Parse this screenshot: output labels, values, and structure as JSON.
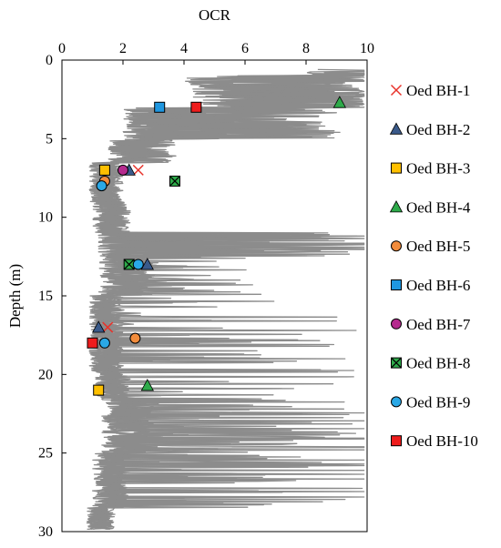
{
  "chart_data": {
    "type": "scatter",
    "title": "",
    "xlabel": "OCR",
    "ylabel": "Depth (m)",
    "xlim": [
      0,
      10
    ],
    "ylim": [
      0,
      30
    ],
    "x_axis_position": "top",
    "y_axis_inverted": true,
    "x_ticks": [
      "0",
      "2",
      "4",
      "6",
      "8",
      "10"
    ],
    "y_ticks": [
      "0",
      "5",
      "10",
      "15",
      "20",
      "25",
      "30"
    ],
    "grid": false,
    "legend_position": "right",
    "background_profile_color": "#8c8c8c",
    "series": [
      {
        "name": "Oed BH-1",
        "marker": "x",
        "color": "#e8322a",
        "points": [
          {
            "x": 2.5,
            "y": 7.0
          },
          {
            "x": 1.5,
            "y": 17.0
          }
        ]
      },
      {
        "name": "Oed BH-2",
        "marker": "triangle",
        "color": "#3a5a8a",
        "points": [
          {
            "x": 2.2,
            "y": 7.0
          },
          {
            "x": 2.8,
            "y": 13.0
          },
          {
            "x": 1.2,
            "y": 17.0
          }
        ]
      },
      {
        "name": "Oed BH-3",
        "marker": "square",
        "color": "#ffc000",
        "points": [
          {
            "x": 1.4,
            "y": 7.0
          },
          {
            "x": 1.2,
            "y": 21.0
          }
        ]
      },
      {
        "name": "Oed BH-4",
        "marker": "triangle",
        "color": "#2eaa4a",
        "points": [
          {
            "x": 9.1,
            "y": 2.7
          },
          {
            "x": 2.8,
            "y": 20.7
          }
        ]
      },
      {
        "name": "Oed BH-5",
        "marker": "circle",
        "color": "#f28c3c",
        "points": [
          {
            "x": 1.4,
            "y": 7.7
          },
          {
            "x": 2.4,
            "y": 17.7
          }
        ]
      },
      {
        "name": "Oed BH-6",
        "marker": "square",
        "color": "#1f97e0",
        "points": [
          {
            "x": 3.2,
            "y": 3.0
          }
        ]
      },
      {
        "name": "Oed BH-7",
        "marker": "circle",
        "color": "#b52a8e",
        "points": [
          {
            "x": 2.0,
            "y": 7.0
          }
        ]
      },
      {
        "name": "Oed BH-8",
        "marker": "xsquare",
        "color": "#2eaa4a",
        "points": [
          {
            "x": 3.7,
            "y": 7.7
          },
          {
            "x": 2.2,
            "y": 13.0
          }
        ]
      },
      {
        "name": "Oed BH-9",
        "marker": "circle",
        "color": "#2aa8e6",
        "points": [
          {
            "x": 1.3,
            "y": 8.0
          },
          {
            "x": 2.5,
            "y": 13.0
          },
          {
            "x": 1.4,
            "y": 18.0
          }
        ]
      },
      {
        "name": "Oed BH-10",
        "marker": "square",
        "color": "#ee1c1c",
        "points": [
          {
            "x": 4.4,
            "y": 3.0
          },
          {
            "x": 1.0,
            "y": 18.0
          }
        ]
      }
    ]
  }
}
